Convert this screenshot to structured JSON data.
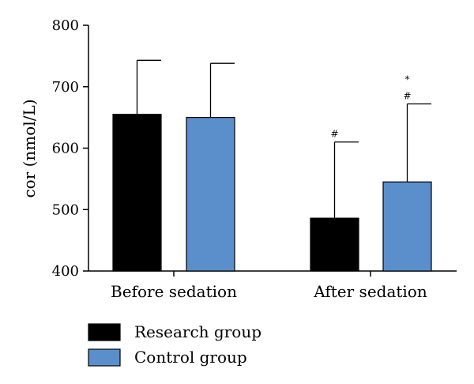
{
  "chart_data": {
    "type": "bar",
    "title": "",
    "xlabel": "",
    "ylabel": "cor (nmol/L)",
    "ylim": [
      400,
      800
    ],
    "yticks": [
      400,
      500,
      600,
      700,
      800
    ],
    "categories": [
      "Before sedation",
      "After sedation"
    ],
    "grid": false,
    "legend_position": "bottom-left",
    "series": [
      {
        "name": "Research group",
        "color": "#000000",
        "values": [
          655,
          486
        ],
        "errors": [
          88,
          124
        ],
        "annotations": [
          "",
          "#"
        ]
      },
      {
        "name": "Control group",
        "color": "#5b8fcc",
        "values": [
          650,
          545
        ],
        "errors": [
          88,
          127
        ],
        "annotations": [
          "",
          "#\n*"
        ]
      }
    ]
  }
}
